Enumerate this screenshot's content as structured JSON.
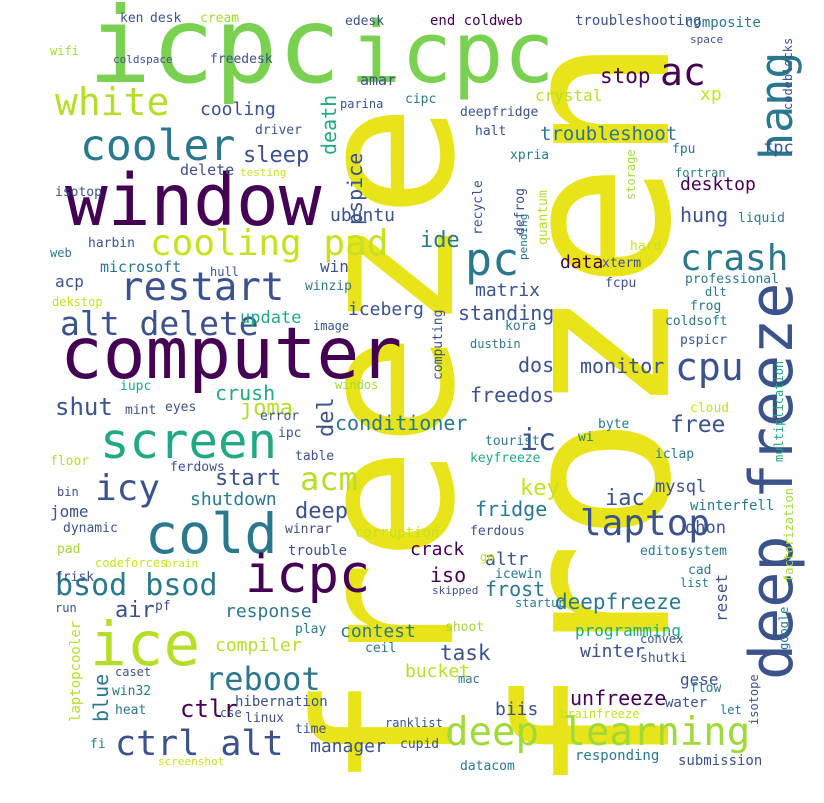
{
  "words": [
    "frozen",
    "freeze",
    "icpc",
    "icpc",
    "window",
    "computer",
    "deep freeze",
    "screen",
    "cold",
    "ice",
    "cooler",
    "white",
    "restart",
    "cooling pad",
    "alt delete",
    "icy",
    "bsod bsod",
    "icpc",
    "reboot",
    "ctrl alt",
    "ctlr",
    "deep learning",
    "laptop",
    "crash",
    "pc",
    "cpu",
    "ac",
    "hang",
    "acm",
    "joma",
    "crush",
    "shut",
    "start",
    "shutdown",
    "deep",
    "sleep",
    "cooling",
    "delete",
    "microsoft",
    "acp",
    "win",
    "winzip",
    "update",
    "iceberg",
    "matrix",
    "ide",
    "ubuntu",
    "data",
    "xterm",
    "standing",
    "dos",
    "monitor",
    "freedos",
    "ic",
    "free",
    "conditioner",
    "del",
    "key",
    "iac",
    "mysql",
    "dhon",
    "winterfell",
    "fridge",
    "crack",
    "altr",
    "iso",
    "frost",
    "deepfreeze",
    "reset",
    "task",
    "contest",
    "response",
    "compiler",
    "air",
    "pf",
    "programming",
    "winter",
    "bucket",
    "blue",
    "laptopcooler",
    "unfreeze",
    "biis",
    "manager",
    "responding",
    "submission",
    "hibernation",
    "linux",
    "cse",
    "time",
    "cupid",
    "ranklist",
    "brainfreeze",
    "water",
    "flow",
    "let",
    "gese",
    "isotope",
    "google",
    "factorization",
    "multiplication",
    "cloud",
    "byte",
    "wi",
    "iclap",
    "tourist",
    "keyfreeze",
    "fpc",
    "fpu",
    "desktop",
    "hung",
    "liquid",
    "hard",
    "professional",
    "dlt",
    "frog",
    "coldsoft",
    "pspicr",
    "fcpu",
    "kora",
    "dustbin",
    "computing",
    "image",
    "windos",
    "error",
    "ipc",
    "table",
    "eyes",
    "mint",
    "iupc",
    "floor",
    "ferdows",
    "bin",
    "jome",
    "dynamic",
    "pad",
    "codeforces",
    "brain",
    "frisk",
    "run",
    "caset",
    "win32",
    "heat",
    "fi",
    "screenshot",
    "winrar",
    "corruption",
    "ferdous",
    "trouble",
    "go",
    "icewin",
    "skipped",
    "startup",
    "shoot",
    "play",
    "ceil",
    "mac",
    "datacom",
    "editor",
    "system",
    "cad",
    "list",
    "convex",
    "shutki",
    "harbin",
    "web",
    "hull",
    "dekstop",
    "isotop",
    "testing",
    "driver",
    "xp",
    "stop",
    "troubleshoot",
    "crystal",
    "amar",
    "parina",
    "cipc",
    "deepfridge",
    "halt",
    "xpria",
    "storage",
    "quantum",
    "defrog",
    "pending",
    "recycle",
    "fortran",
    "codeblocks",
    "space",
    "composite",
    "troubleshooting",
    "end coldweb",
    "edesk",
    "cream",
    "desk",
    "ken",
    "wifi",
    "coldspace",
    "freedesk",
    "death",
    "pspice"
  ]
}
